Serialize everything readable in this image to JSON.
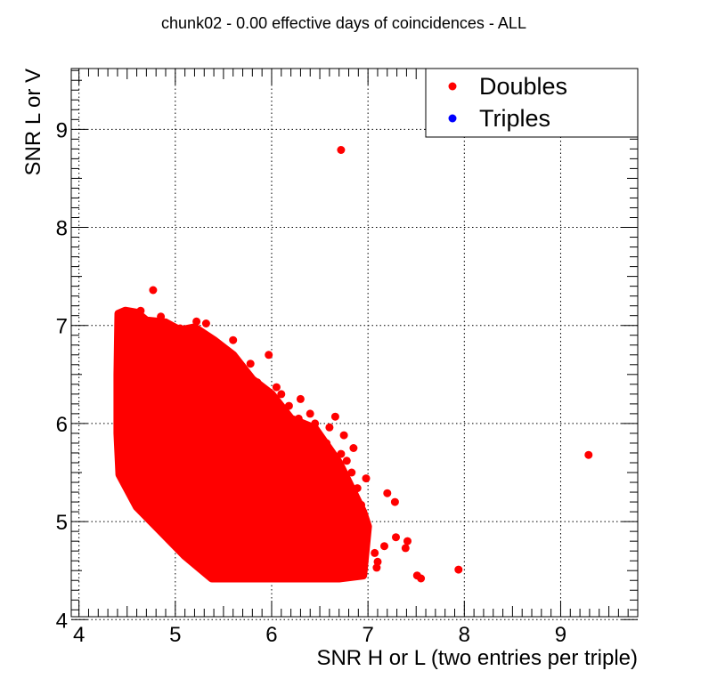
{
  "chart_data": {
    "type": "scatter",
    "title": "chunk02 - 0.00 effective days of coincidences - ALL",
    "xlabel": "SNR H or L (two entries per triple)",
    "ylabel": "SNR L or V",
    "xlim": [
      3.92,
      9.8
    ],
    "ylim": [
      4.03,
      9.62
    ],
    "x_ticks": [
      "4",
      "5",
      "6",
      "7",
      "8",
      "9"
    ],
    "y_ticks": [
      "4",
      "5",
      "6",
      "7",
      "8",
      "9"
    ],
    "grid": true,
    "legend_position": "top-right",
    "legend": [
      {
        "label": "Doubles",
        "color": "#ff0000"
      },
      {
        "label": "Triples",
        "color": "#0000ff"
      }
    ],
    "series": [
      {
        "name": "Doubles",
        "color": "#ff0000",
        "dense_region": [
          [
            4.41,
            7.12
          ],
          [
            4.48,
            7.15
          ],
          [
            4.6,
            7.13
          ],
          [
            4.7,
            7.05
          ],
          [
            4.9,
            7.03
          ],
          [
            5.05,
            6.95
          ],
          [
            5.2,
            6.98
          ],
          [
            5.4,
            6.85
          ],
          [
            5.6,
            6.7
          ],
          [
            5.8,
            6.45
          ],
          [
            6.0,
            6.3
          ],
          [
            6.2,
            6.05
          ],
          [
            6.45,
            5.95
          ],
          [
            6.7,
            5.6
          ],
          [
            6.95,
            5.1
          ],
          [
            7.0,
            4.95
          ],
          [
            6.95,
            4.45
          ],
          [
            6.7,
            4.42
          ],
          [
            6.3,
            4.42
          ],
          [
            5.8,
            4.42
          ],
          [
            5.38,
            4.42
          ],
          [
            5.1,
            4.65
          ],
          [
            4.85,
            4.9
          ],
          [
            4.6,
            5.15
          ],
          [
            4.42,
            5.48
          ],
          [
            4.4,
            5.9
          ],
          [
            4.4,
            6.5
          ]
        ],
        "points": [
          {
            "x": 6.72,
            "y": 8.79
          },
          {
            "x": 4.77,
            "y": 7.36
          },
          {
            "x": 9.29,
            "y": 5.68
          },
          {
            "x": 7.94,
            "y": 4.51
          },
          {
            "x": 7.55,
            "y": 4.42
          },
          {
            "x": 7.51,
            "y": 4.45
          },
          {
            "x": 7.41,
            "y": 4.8
          },
          {
            "x": 7.39,
            "y": 4.73
          },
          {
            "x": 7.29,
            "y": 4.84
          },
          {
            "x": 7.28,
            "y": 5.2
          },
          {
            "x": 7.2,
            "y": 5.29
          },
          {
            "x": 7.17,
            "y": 4.75
          },
          {
            "x": 7.1,
            "y": 4.59
          },
          {
            "x": 7.09,
            "y": 4.53
          },
          {
            "x": 7.07,
            "y": 4.68
          },
          {
            "x": 6.98,
            "y": 5.44
          },
          {
            "x": 6.93,
            "y": 5.17
          },
          {
            "x": 6.91,
            "y": 4.95
          },
          {
            "x": 6.89,
            "y": 5.34
          },
          {
            "x": 6.85,
            "y": 5.75
          },
          {
            "x": 6.83,
            "y": 5.5
          },
          {
            "x": 6.78,
            "y": 5.62
          },
          {
            "x": 6.75,
            "y": 5.88
          },
          {
            "x": 6.72,
            "y": 5.69
          },
          {
            "x": 6.66,
            "y": 6.07
          },
          {
            "x": 6.6,
            "y": 5.96
          },
          {
            "x": 6.57,
            "y": 5.8
          },
          {
            "x": 6.5,
            "y": 5.85
          },
          {
            "x": 6.45,
            "y": 6.0
          },
          {
            "x": 6.4,
            "y": 6.1
          },
          {
            "x": 6.3,
            "y": 6.25
          },
          {
            "x": 6.28,
            "y": 6.05
          },
          {
            "x": 6.18,
            "y": 6.18
          },
          {
            "x": 6.1,
            "y": 6.3
          },
          {
            "x": 6.05,
            "y": 6.37
          },
          {
            "x": 5.97,
            "y": 6.7
          },
          {
            "x": 5.85,
            "y": 6.42
          },
          {
            "x": 5.78,
            "y": 6.61
          },
          {
            "x": 5.7,
            "y": 6.52
          },
          {
            "x": 5.6,
            "y": 6.85
          },
          {
            "x": 5.5,
            "y": 6.65
          },
          {
            "x": 5.42,
            "y": 6.8
          },
          {
            "x": 5.32,
            "y": 7.02
          },
          {
            "x": 5.22,
            "y": 7.04
          },
          {
            "x": 5.05,
            "y": 6.97
          },
          {
            "x": 4.9,
            "y": 7.02
          },
          {
            "x": 4.85,
            "y": 7.09
          },
          {
            "x": 4.64,
            "y": 7.15
          },
          {
            "x": 4.52,
            "y": 7.13
          },
          {
            "x": 4.45,
            "y": 7.13
          }
        ]
      },
      {
        "name": "Triples",
        "color": "#0000ff",
        "points": []
      }
    ]
  }
}
